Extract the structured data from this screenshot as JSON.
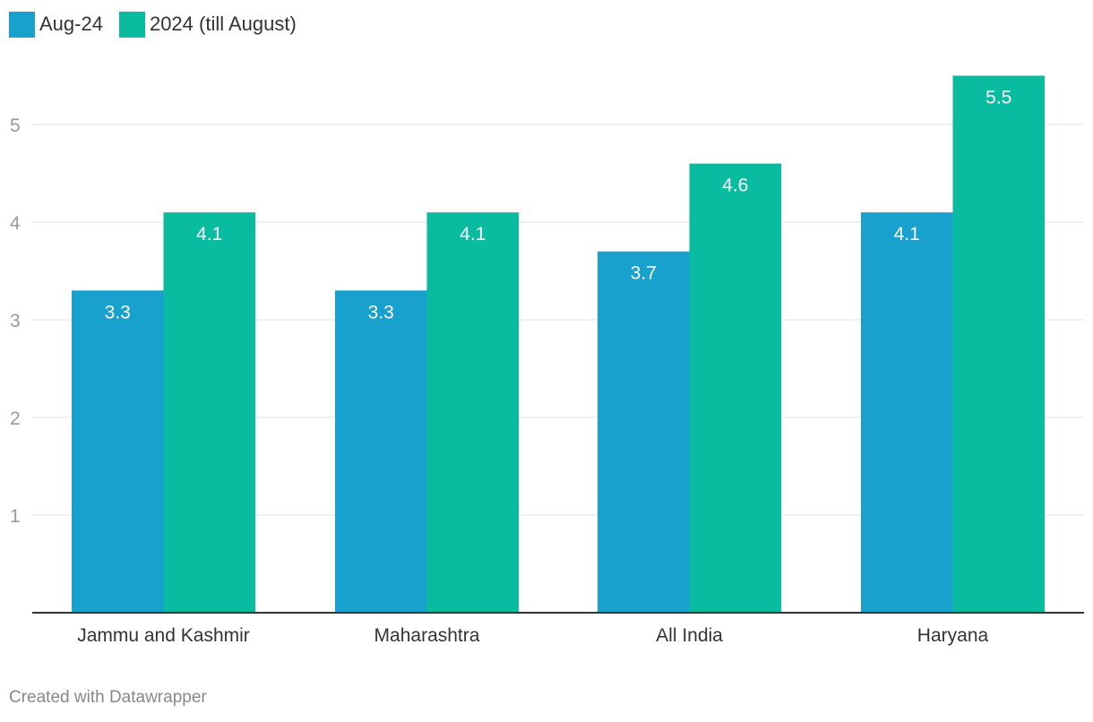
{
  "chart_data": {
    "type": "bar",
    "categories": [
      "Jammu and Kashmir",
      "Maharashtra",
      "All India",
      "Haryana"
    ],
    "series": [
      {
        "name": "Aug-24",
        "values": [
          3.3,
          3.3,
          3.7,
          4.1
        ],
        "color": "#18a1cd"
      },
      {
        "name": "2024 (till August)",
        "values": [
          4.1,
          4.1,
          4.6,
          5.5
        ],
        "color": "#09bb9f"
      }
    ],
    "yticks": [
      1,
      2,
      3,
      4,
      5
    ],
    "ylim": [
      0,
      5.6
    ],
    "grid": true,
    "legend_position": "top-left"
  },
  "footer": {
    "credit": "Created with Datawrapper"
  }
}
